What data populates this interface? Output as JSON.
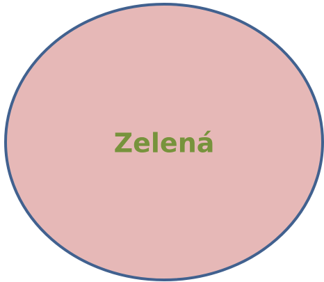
{
  "shape": {
    "label": "Zelená"
  }
}
